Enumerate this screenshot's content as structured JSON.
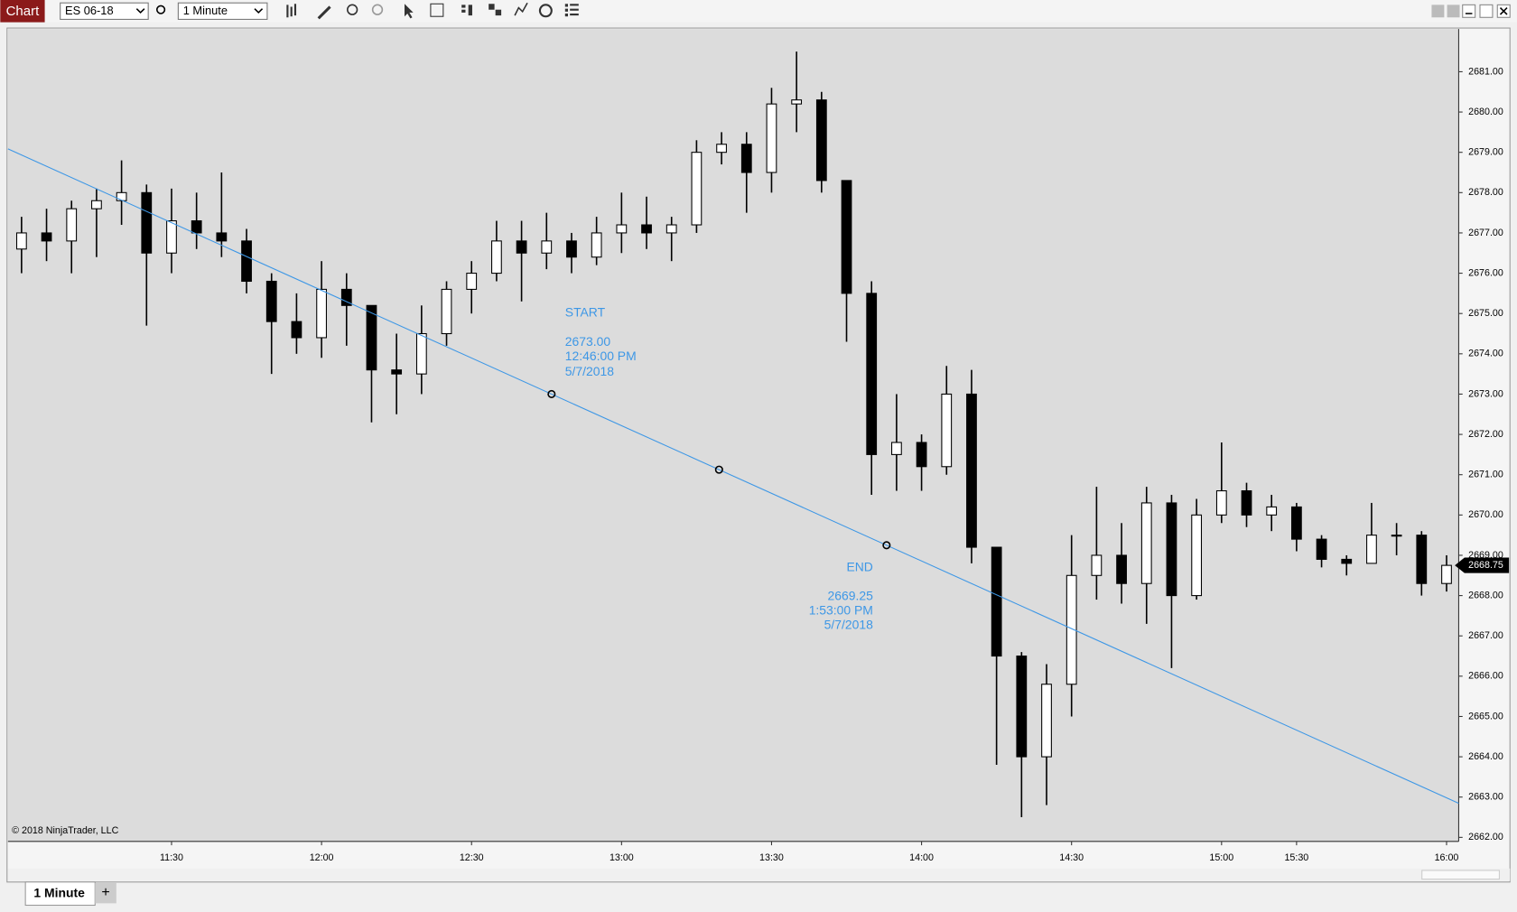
{
  "ui": {
    "window_tab": "Chart",
    "instrument": "ES 06-18",
    "interval": "1 Minute",
    "bottom_tab": "1 Minute",
    "add_tab": "+",
    "copyright": "© 2018 NinjaTrader, LLC"
  },
  "chart_data": {
    "type": "candlestick",
    "categories": [
      "11:00",
      "11:05",
      "11:10",
      "11:15",
      "11:20",
      "11:25",
      "11:30",
      "11:35",
      "11:40",
      "11:45",
      "11:50",
      "11:55",
      "12:00",
      "12:05",
      "12:10",
      "12:15",
      "12:20",
      "12:25",
      "12:30",
      "12:35",
      "12:40",
      "12:45",
      "12:50",
      "12:55",
      "13:00",
      "13:05",
      "13:10",
      "13:15",
      "13:20",
      "13:25",
      "13:30",
      "13:35",
      "13:40",
      "13:45",
      "13:50",
      "13:55",
      "14:00",
      "14:05",
      "14:10",
      "14:15",
      "14:20",
      "14:25",
      "14:30",
      "14:35",
      "14:40",
      "14:45",
      "14:50",
      "14:55",
      "15:00",
      "15:05",
      "15:10",
      "15:30",
      "15:35",
      "15:40",
      "15:45",
      "15:50",
      "15:55",
      "16:00"
    ],
    "open": [
      2676.6,
      2677.0,
      2676.8,
      2677.6,
      2677.8,
      2678.0,
      2676.5,
      2677.3,
      2677.0,
      2676.8,
      2675.8,
      2674.8,
      2674.4,
      2675.6,
      2675.2,
      2673.6,
      2673.5,
      2674.5,
      2675.6,
      2676.0,
      2676.8,
      2676.5,
      2676.8,
      2676.4,
      2677.0,
      2677.2,
      2677.0,
      2677.2,
      2679.0,
      2679.2,
      2678.5,
      2680.2,
      2680.3,
      2678.3,
      2675.5,
      2671.5,
      2671.8,
      2671.2,
      2673.0,
      2669.2,
      2666.5,
      2664.0,
      2665.8,
      2668.5,
      2669.0,
      2668.3,
      2670.3,
      2668.0,
      2670.0,
      2670.6,
      2670.0,
      2670.2,
      2669.4,
      2668.9,
      2668.8,
      2669.5,
      2669.5,
      2668.3
    ],
    "high": [
      2677.4,
      2677.6,
      2677.8,
      2678.1,
      2678.8,
      2678.2,
      2678.1,
      2678.0,
      2678.5,
      2677.1,
      2676.0,
      2675.5,
      2676.3,
      2676.0,
      2675.2,
      2674.5,
      2675.2,
      2675.8,
      2676.3,
      2677.3,
      2677.3,
      2677.5,
      2677.0,
      2677.4,
      2678.0,
      2677.9,
      2677.4,
      2679.3,
      2679.5,
      2679.5,
      2680.6,
      2681.5,
      2680.5,
      2678.3,
      2675.8,
      2673.0,
      2672.0,
      2673.7,
      2673.6,
      2669.2,
      2666.6,
      2666.3,
      2669.5,
      2670.7,
      2669.8,
      2670.7,
      2670.5,
      2670.4,
      2671.8,
      2670.8,
      2670.5,
      2670.3,
      2669.5,
      2669.0,
      2670.3,
      2669.8,
      2669.6,
      2669.0
    ],
    "low": [
      2676.0,
      2676.3,
      2676.0,
      2676.4,
      2677.2,
      2674.7,
      2676.0,
      2676.6,
      2676.4,
      2675.5,
      2673.5,
      2674.0,
      2673.9,
      2674.2,
      2672.3,
      2672.5,
      2673.0,
      2674.2,
      2675.0,
      2675.8,
      2675.3,
      2676.1,
      2676.0,
      2676.2,
      2676.5,
      2676.6,
      2676.3,
      2677.0,
      2678.7,
      2677.5,
      2678.0,
      2679.5,
      2678.0,
      2674.3,
      2670.5,
      2670.6,
      2670.6,
      2671.0,
      2668.8,
      2663.8,
      2662.5,
      2662.8,
      2665.0,
      2667.9,
      2667.8,
      2667.3,
      2666.2,
      2667.9,
      2669.8,
      2669.7,
      2669.6,
      2669.1,
      2668.7,
      2668.5,
      2668.8,
      2669.0,
      2668.0,
      2668.1
    ],
    "close": [
      2677.0,
      2676.8,
      2677.6,
      2677.8,
      2678.0,
      2676.5,
      2677.3,
      2677.0,
      2676.8,
      2675.8,
      2674.8,
      2674.4,
      2675.6,
      2675.2,
      2673.6,
      2673.5,
      2674.5,
      2675.6,
      2676.0,
      2676.8,
      2676.5,
      2676.8,
      2676.4,
      2677.0,
      2677.2,
      2677.0,
      2677.2,
      2679.0,
      2679.2,
      2678.5,
      2680.2,
      2680.3,
      2678.3,
      2675.5,
      2671.5,
      2671.8,
      2671.2,
      2673.0,
      2669.2,
      2666.5,
      2664.0,
      2665.8,
      2668.5,
      2669.0,
      2668.3,
      2670.3,
      2668.0,
      2670.0,
      2670.6,
      2670.0,
      2670.2,
      2669.4,
      2668.9,
      2668.8,
      2669.5,
      2669.5,
      2668.3,
      2668.75
    ],
    "up_color": "#ffffff",
    "down_color": "#000000",
    "outline_color": "#000000",
    "xticks": [
      "11:30",
      "12:00",
      "12:30",
      "13:00",
      "13:30",
      "14:00",
      "14:30",
      "15:00",
      "15:30",
      "16:00"
    ],
    "ylim": [
      2661.9,
      2682.06
    ],
    "yticks": [
      {
        "value": 2662,
        "label": "2662.00"
      },
      {
        "value": 2663,
        "label": "2663.00"
      },
      {
        "value": 2664,
        "label": "2664.00"
      },
      {
        "value": 2665,
        "label": "2665.00"
      },
      {
        "value": 2666,
        "label": "2666.00"
      },
      {
        "value": 2667,
        "label": "2667.00"
      },
      {
        "value": 2668,
        "label": "2668.00"
      },
      {
        "value": 2669,
        "label": "2669.00"
      },
      {
        "value": 2670,
        "label": "2670.00"
      },
      {
        "value": 2671,
        "label": "2671.00"
      },
      {
        "value": 2672,
        "label": "2672.00"
      },
      {
        "value": 2673,
        "label": "2673.00"
      },
      {
        "value": 2674,
        "label": "2674.00"
      },
      {
        "value": 2675,
        "label": "2675.00"
      },
      {
        "value": 2676,
        "label": "2676.00"
      },
      {
        "value": 2677,
        "label": "2677.00"
      },
      {
        "value": 2678,
        "label": "2678.00"
      },
      {
        "value": 2679,
        "label": "2679.00"
      },
      {
        "value": 2680,
        "label": "2680.00"
      },
      {
        "value": 2681,
        "label": "2681.00"
      }
    ],
    "drawing": {
      "type": "line",
      "color": "#3d97e6",
      "start": {
        "label": "START",
        "price": {
          "value": 2673,
          "label": "2673.00"
        },
        "time": "12:46:00 PM",
        "date": "5/7/2018"
      },
      "end": {
        "label": "END",
        "price": {
          "value": 2669.25,
          "label": "2669.25"
        },
        "time": "1:53:00 PM",
        "date": "5/7/2018"
      }
    }
  }
}
